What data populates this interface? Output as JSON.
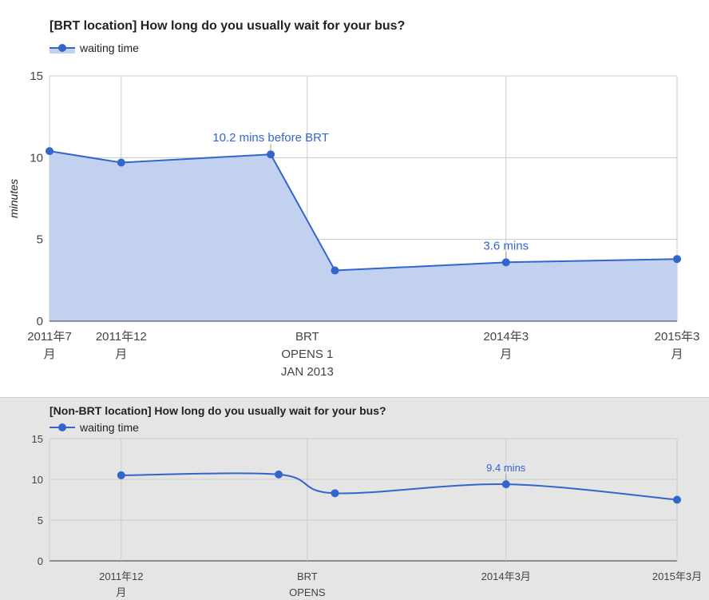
{
  "chart_data": [
    {
      "type": "area",
      "title": "[BRT location] How long do you usually wait for your bus?",
      "ylabel": "minutes",
      "ylim": [
        0,
        15
      ],
      "yticks": [
        0,
        5,
        10,
        15
      ],
      "xlim": [
        "2011-07-01",
        "2015-03-01"
      ],
      "grid": true,
      "legend_position": "top-left",
      "colors": {
        "line": "#3366cc",
        "fill": "#c3d1f0",
        "annotation": "#3366cc"
      },
      "x_ticks": [
        {
          "date": "2011-07-01",
          "label": [
            "2011年7",
            "月"
          ]
        },
        {
          "date": "2011-12-01",
          "label": [
            "2011年12",
            "月"
          ]
        },
        {
          "date": "2013-01-01",
          "label": [
            "BRT",
            "OPENS 1",
            "JAN 2013"
          ]
        },
        {
          "date": "2014-03-01",
          "label": [
            "2014年3",
            "月"
          ]
        },
        {
          "date": "2015-03-01",
          "label": [
            "2015年3",
            "月"
          ]
        }
      ],
      "series": [
        {
          "name": "waiting time",
          "points": [
            {
              "x": "2011-07-01",
              "y": 10.4
            },
            {
              "x": "2011-12-01",
              "y": 9.7
            },
            {
              "x": "2012-10-15",
              "y": 10.2,
              "annotation": "10.2 mins before BRT"
            },
            {
              "x": "2013-03-01",
              "y": 3.1
            },
            {
              "x": "2014-03-01",
              "y": 3.6,
              "annotation": "3.6 mins"
            },
            {
              "x": "2015-03-01",
              "y": 3.8
            }
          ]
        }
      ]
    },
    {
      "type": "line",
      "title": "[Non-BRT location] How long do you usually wait for your bus?",
      "ylabel": "",
      "ylim": [
        0,
        15
      ],
      "yticks": [
        0,
        5,
        10,
        15
      ],
      "xlim": [
        "2011-07-01",
        "2015-03-01"
      ],
      "grid": true,
      "legend_position": "top-left",
      "colors": {
        "line": "#3366cc",
        "annotation": "#3366cc"
      },
      "x_ticks": [
        {
          "date": "2011-12-01",
          "label": [
            "2011年12",
            "月"
          ]
        },
        {
          "date": "2013-01-01",
          "label": [
            "BRT",
            "OPENS"
          ]
        },
        {
          "date": "2014-03-01",
          "label": [
            "2014年3月"
          ]
        },
        {
          "date": "2015-03-01",
          "label": [
            "2015年3月"
          ]
        }
      ],
      "series": [
        {
          "name": "waiting time",
          "points": [
            {
              "x": "2011-12-01",
              "y": 10.5
            },
            {
              "x": "2012-11-01",
              "y": 10.6
            },
            {
              "x": "2013-03-01",
              "y": 8.3
            },
            {
              "x": "2014-03-01",
              "y": 9.4,
              "annotation": "9.4 mins"
            },
            {
              "x": "2015-03-01",
              "y": 7.5
            }
          ]
        }
      ]
    }
  ]
}
